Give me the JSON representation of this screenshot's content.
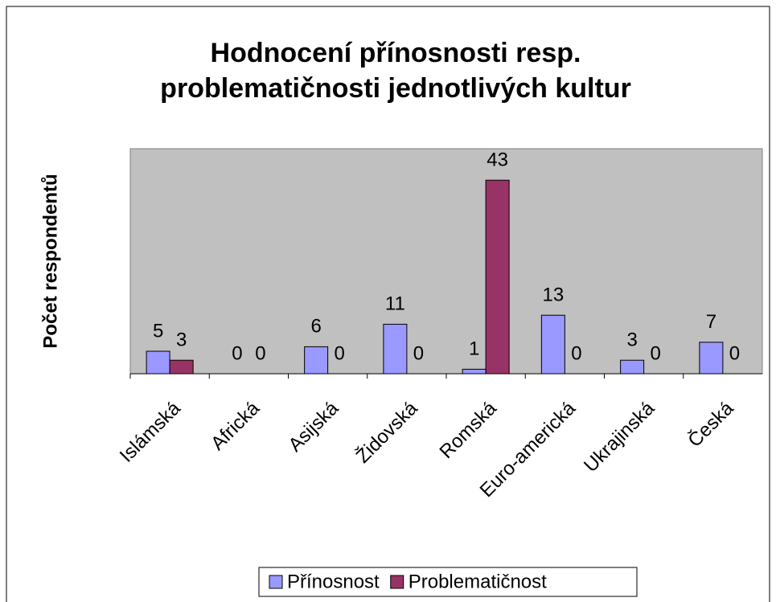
{
  "chart_data": {
    "type": "bar",
    "title": [
      "Hodnocení přínosnosti resp.",
      "problematičnosti jednotlivých kultur"
    ],
    "y_label": "Počet respondentů",
    "categories": [
      "Islámská",
      "Africká",
      "Asijská",
      "Židovská",
      "Romská",
      "Euro-americká",
      "Ukrajinská",
      "Česká"
    ],
    "series": [
      {
        "name": "Přínosnost",
        "color": "#9999ff",
        "values": [
          5,
          0,
          6,
          11,
          1,
          13,
          3,
          7
        ]
      },
      {
        "name": "Problematičnost",
        "color": "#993366",
        "values": [
          3,
          0,
          0,
          0,
          43,
          0,
          0,
          0
        ]
      }
    ],
    "ylim": [
      0,
      50
    ],
    "plot_background": "#c0c0c0",
    "legend": "bottom"
  }
}
